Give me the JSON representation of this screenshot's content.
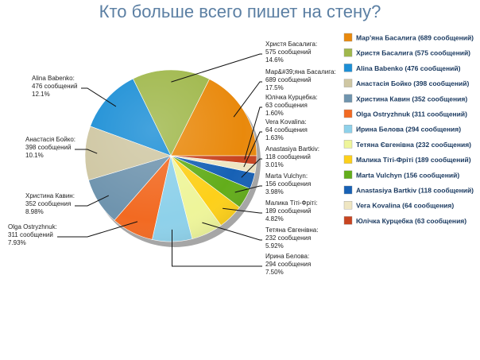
{
  "chart_data": {
    "type": "pie",
    "title": "Кто больше всего пишет на стену?",
    "legend_position": "right",
    "slices": [
      {
        "legend": "Мар'яна Басалига (689 сообщений)",
        "label_lines": [
          "Мар&#39;яна Басалига:",
          "689 сообщений",
          "17.5%"
        ],
        "value": 689,
        "percent": 17.5,
        "color": "#e9890c"
      },
      {
        "legend": "Христя Басалига (575 сообщений)",
        "label_lines": [
          "Христя Басалига:",
          "575 сообщений",
          "14.6%"
        ],
        "value": 575,
        "percent": 14.6,
        "color": "#a0b84c"
      },
      {
        "legend": "Alina Babenko (476 сообщений)",
        "label_lines": [
          "Alina Babenko:",
          "476 сообщений",
          "12.1%"
        ],
        "value": 476,
        "percent": 12.1,
        "color": "#1c8fd6"
      },
      {
        "legend": "Анастасія Бойко (398 сообщений)",
        "label_lines": [
          "Анастасія Бойко:",
          "398 сообщений",
          "10.1%"
        ],
        "value": 398,
        "percent": 10.1,
        "color": "#cfc7a3"
      },
      {
        "legend": "Христина Кавин (352 сообщения)",
        "label_lines": [
          "Христина Кавин:",
          "352 сообщения",
          "8.98%"
        ],
        "value": 352,
        "percent": 8.98,
        "color": "#6f94ae"
      },
      {
        "legend": "Olga Ostryzhnuk (311 сообщений)",
        "label_lines": [
          "Olga Ostryzhnuk:",
          "311 сообщений",
          "7.93%"
        ],
        "value": 311,
        "percent": 7.93,
        "color": "#f26a22"
      },
      {
        "legend": "Ирина Белова (294 сообщения)",
        "label_lines": [
          "Ирина Белова:",
          "294 сообщения",
          "7.50%"
        ],
        "value": 294,
        "percent": 7.5,
        "color": "#8ed1ea"
      },
      {
        "legend": "Тетяна Євгенівна (232 сообщения)",
        "label_lines": [
          "Тетяна Євгенівна:",
          "232 сообщения",
          "5.92%"
        ],
        "value": 232,
        "percent": 5.92,
        "color": "#eef59a"
      },
      {
        "legend": "Малика Тіті-Фріті (189 сообщений)",
        "label_lines": [
          "Малика Тіті-Фріті:",
          "189 сообщений",
          "4.82%"
        ],
        "value": 189,
        "percent": 4.82,
        "color": "#fdd01a"
      },
      {
        "legend": "Marta Vulchyn (156 сообщений)",
        "label_lines": [
          "Marta Vulchyn:",
          "156 сообщения",
          "3.98%"
        ],
        "value": 156,
        "percent": 3.98,
        "color": "#63ad1b"
      },
      {
        "legend": "Anastasiya Bartkiv (118 сообщений)",
        "label_lines": [
          "Anastasiya Bartkiv:",
          "118 сообщений",
          "3.01%"
        ],
        "value": 118,
        "percent": 3.01,
        "color": "#1761b5"
      },
      {
        "legend": "Vera Kovalina (64 сообщения)",
        "label_lines": [
          "Vera Kovalina:",
          "64 сообщения",
          "1.63%"
        ],
        "value": 64,
        "percent": 1.63,
        "color": "#efe6c2"
      },
      {
        "legend": "Юлічка Курцебка (63 сообщения)",
        "label_lines": [
          "Юлічка Курцебка:",
          "63 сообщения",
          "1.60%"
        ],
        "value": 63,
        "percent": 1.6,
        "color": "#c84420"
      }
    ]
  }
}
